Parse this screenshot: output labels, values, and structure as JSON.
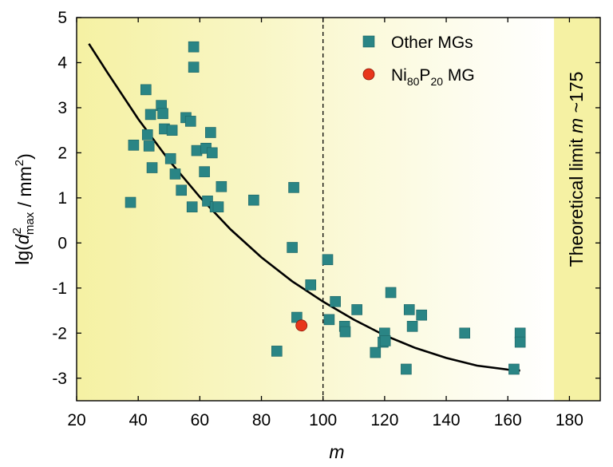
{
  "chart_data": {
    "type": "scatter",
    "title": "",
    "xlabel": "m",
    "ylabel": {
      "prefix": "lg(",
      "d": "d",
      "sup": "2",
      "sub": "max",
      "suffix": " / mm",
      "unit_sup": "2",
      "close": ")"
    },
    "xlim": [
      20,
      190
    ],
    "ylim": [
      -3.5,
      5
    ],
    "xticks": [
      20,
      40,
      60,
      80,
      100,
      120,
      140,
      160,
      180
    ],
    "yticks": [
      -3,
      -2,
      -1,
      0,
      1,
      2,
      3,
      4,
      5
    ],
    "grid": false,
    "legend_position": "top-center",
    "vertical_line": {
      "x": 100,
      "style": "dashed"
    },
    "theoretical_limit": {
      "x_from": 175,
      "x_to": 190,
      "label_prefix": "Theoretical limit ",
      "label_var": "m",
      "label_suffix": " ~175"
    },
    "series": [
      {
        "name": "Other MGs",
        "marker": "square",
        "color": "#2a8585",
        "points": [
          [
            37.5,
            0.9
          ],
          [
            38.5,
            2.17
          ],
          [
            42.5,
            3.4
          ],
          [
            43,
            2.4
          ],
          [
            43.5,
            2.15
          ],
          [
            44,
            2.85
          ],
          [
            44.5,
            1.67
          ],
          [
            47.5,
            3.05
          ],
          [
            48,
            2.87
          ],
          [
            48.5,
            2.53
          ],
          [
            50.5,
            1.87
          ],
          [
            51,
            2.5
          ],
          [
            52,
            1.53
          ],
          [
            54,
            1.17
          ],
          [
            55.5,
            2.78
          ],
          [
            57,
            2.7
          ],
          [
            57.5,
            0.8
          ],
          [
            58,
            4.35
          ],
          [
            58,
            3.9
          ],
          [
            59,
            2.05
          ],
          [
            61.5,
            1.58
          ],
          [
            62,
            2.1
          ],
          [
            62.5,
            0.93
          ],
          [
            63.5,
            2.45
          ],
          [
            64,
            2.0
          ],
          [
            65,
            0.8
          ],
          [
            66,
            0.8
          ],
          [
            67,
            1.25
          ],
          [
            77.5,
            0.95
          ],
          [
            85,
            -2.4
          ],
          [
            90,
            -0.1
          ],
          [
            90.5,
            1.23
          ],
          [
            91.5,
            -1.65
          ],
          [
            96,
            -0.93
          ],
          [
            101.5,
            -0.37
          ],
          [
            102,
            -1.7
          ],
          [
            104,
            -1.3
          ],
          [
            107,
            -1.85
          ],
          [
            107.2,
            -1.97
          ],
          [
            111,
            -1.48
          ],
          [
            117,
            -2.43
          ],
          [
            119.5,
            -2.2
          ],
          [
            120,
            -2.0
          ],
          [
            120.2,
            -2.17
          ],
          [
            122,
            -1.1
          ],
          [
            127,
            -2.8
          ],
          [
            128,
            -1.48
          ],
          [
            129,
            -1.85
          ],
          [
            132,
            -1.6
          ],
          [
            146,
            -2.0
          ],
          [
            162,
            -2.8
          ],
          [
            164,
            -2.0
          ],
          [
            164,
            -2.2
          ]
        ]
      },
      {
        "name": "Ni80P20 MG",
        "name_parts": {
          "a": "Ni",
          "a_sub": "80",
          "b": "P",
          "b_sub": "20",
          "tail": " MG"
        },
        "marker": "circle",
        "color": "#e8361b",
        "points": [
          [
            93,
            -1.83
          ]
        ]
      }
    ],
    "fit_curve": {
      "color": "#000000",
      "points": [
        [
          24,
          4.42
        ],
        [
          30,
          3.78
        ],
        [
          40,
          2.75
        ],
        [
          50,
          1.83
        ],
        [
          60,
          1.02
        ],
        [
          70,
          0.3
        ],
        [
          80,
          -0.32
        ],
        [
          90,
          -0.85
        ],
        [
          100,
          -1.3
        ],
        [
          110,
          -1.7
        ],
        [
          120,
          -2.05
        ],
        [
          130,
          -2.33
        ],
        [
          140,
          -2.55
        ],
        [
          150,
          -2.72
        ],
        [
          160,
          -2.81
        ],
        [
          164,
          -2.83
        ]
      ]
    },
    "background": {
      "gradient_from": "#f5f1a3",
      "gradient_to": "#ffffff",
      "limit_band": "#f5f1a3"
    }
  }
}
